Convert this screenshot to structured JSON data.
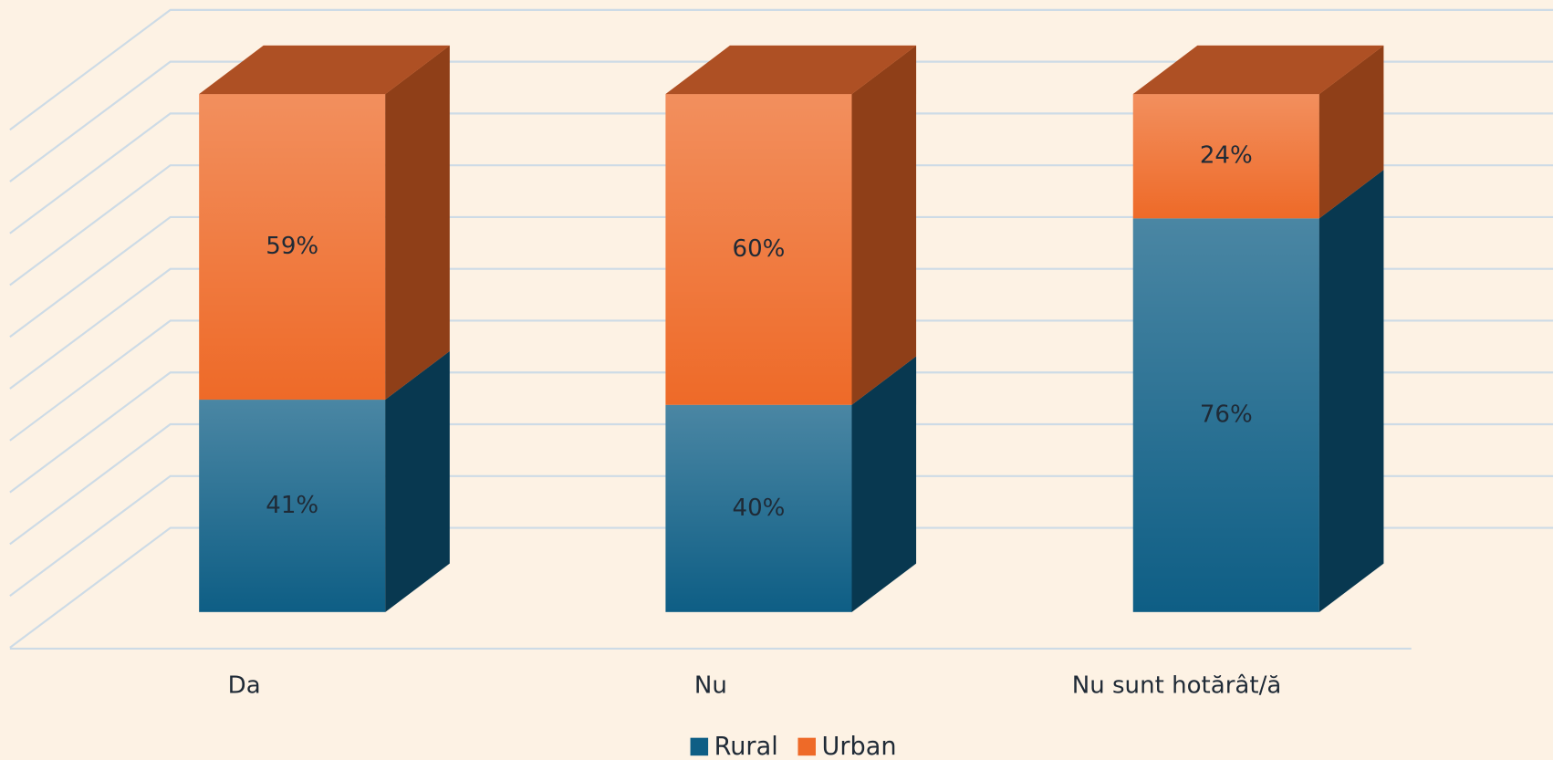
{
  "chart_data": {
    "type": "bar3d_stacked",
    "categories": [
      "Da",
      "Nu",
      "Nu sunt hotărât/ă"
    ],
    "series": [
      {
        "name": "Rural",
        "color": "#0e5e85",
        "values": [
          41,
          40,
          76
        ],
        "value_labels": [
          "41%",
          "40%",
          "76%"
        ]
      },
      {
        "name": "Urban",
        "color": "#ee6a28",
        "values": [
          59,
          60,
          24
        ],
        "value_labels": [
          "59%",
          "60%",
          "24%"
        ]
      }
    ],
    "ylim": [
      0,
      100
    ],
    "yticks": [
      0,
      10,
      20,
      30,
      40,
      50,
      60,
      70,
      80,
      90,
      100
    ],
    "grid": true
  }
}
